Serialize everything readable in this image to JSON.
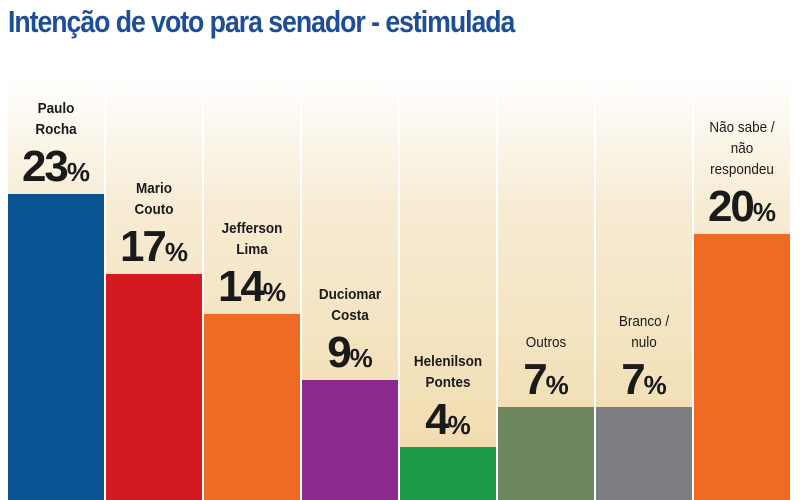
{
  "title": "Intenção de voto para senador - estimulada",
  "colors": {
    "title": "#1f4e99",
    "background_gradient": [
      "#ffffff",
      "#f7ecd4",
      "#efd9a8"
    ]
  },
  "chart_data": {
    "type": "bar",
    "title": "Intenção de voto para senador - estimulada",
    "xlabel": "",
    "ylabel": "",
    "ylim": [
      0,
      23
    ],
    "grid": false,
    "legend": "none",
    "unit": "%",
    "categories": [
      {
        "name_lines": [
          "Paulo",
          "Rocha"
        ],
        "bold": true
      },
      {
        "name_lines": [
          "Mario",
          "Couto"
        ],
        "bold": true
      },
      {
        "name_lines": [
          "Jefferson",
          "Lima"
        ],
        "bold": true
      },
      {
        "name_lines": [
          "Duciomar",
          "Costa"
        ],
        "bold": true
      },
      {
        "name_lines": [
          "Helenilson",
          "Pontes"
        ],
        "bold": true
      },
      {
        "name_lines": [
          "Outros"
        ],
        "bold": false
      },
      {
        "name_lines": [
          "Branco /",
          "nulo"
        ],
        "bold": false
      },
      {
        "name_lines": [
          "Não sabe /",
          "não",
          "respondeu"
        ],
        "bold": false
      }
    ],
    "values": [
      23,
      17,
      14,
      9,
      4,
      7,
      7,
      20
    ],
    "bar_colors": [
      "#0a5494",
      "#d41920",
      "#ef6a22",
      "#8d2a8f",
      "#1b9a48",
      "#6e8660",
      "#7c7d80",
      "#ef6a22"
    ]
  }
}
